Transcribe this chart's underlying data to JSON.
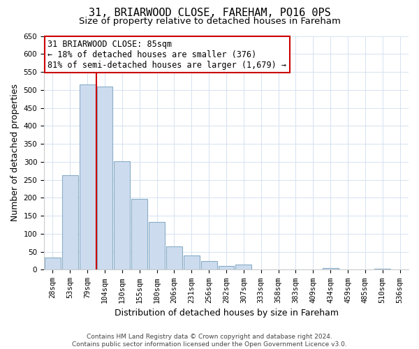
{
  "title": "31, BRIARWOOD CLOSE, FAREHAM, PO16 0PS",
  "subtitle": "Size of property relative to detached houses in Fareham",
  "xlabel": "Distribution of detached houses by size in Fareham",
  "ylabel": "Number of detached properties",
  "bar_labels": [
    "28sqm",
    "53sqm",
    "79sqm",
    "104sqm",
    "130sqm",
    "155sqm",
    "180sqm",
    "206sqm",
    "231sqm",
    "256sqm",
    "282sqm",
    "307sqm",
    "333sqm",
    "358sqm",
    "383sqm",
    "409sqm",
    "434sqm",
    "459sqm",
    "485sqm",
    "510sqm",
    "536sqm"
  ],
  "bar_values": [
    33,
    263,
    515,
    510,
    301,
    197,
    132,
    65,
    40,
    24,
    10,
    15,
    0,
    0,
    0,
    0,
    5,
    0,
    0,
    3,
    0
  ],
  "bar_color": "#ccdcee",
  "bar_edge_color": "#8aadc8",
  "vline_color": "#cc0000",
  "annotation_text": "31 BRIARWOOD CLOSE: 85sqm\n← 18% of detached houses are smaller (376)\n81% of semi-detached houses are larger (1,679) →",
  "annotation_box_edge": "#cc0000",
  "ylim": [
    0,
    650
  ],
  "yticks": [
    0,
    50,
    100,
    150,
    200,
    250,
    300,
    350,
    400,
    450,
    500,
    550,
    600,
    650
  ],
  "footer_line1": "Contains HM Land Registry data © Crown copyright and database right 2024.",
  "footer_line2": "Contains public sector information licensed under the Open Government Licence v3.0.",
  "title_fontsize": 11,
  "subtitle_fontsize": 9.5,
  "ylabel_fontsize": 9,
  "xlabel_fontsize": 9,
  "tick_fontsize": 7.5,
  "annotation_fontsize": 8.5,
  "footer_fontsize": 6.5,
  "grid_color": "#d5e2f0"
}
